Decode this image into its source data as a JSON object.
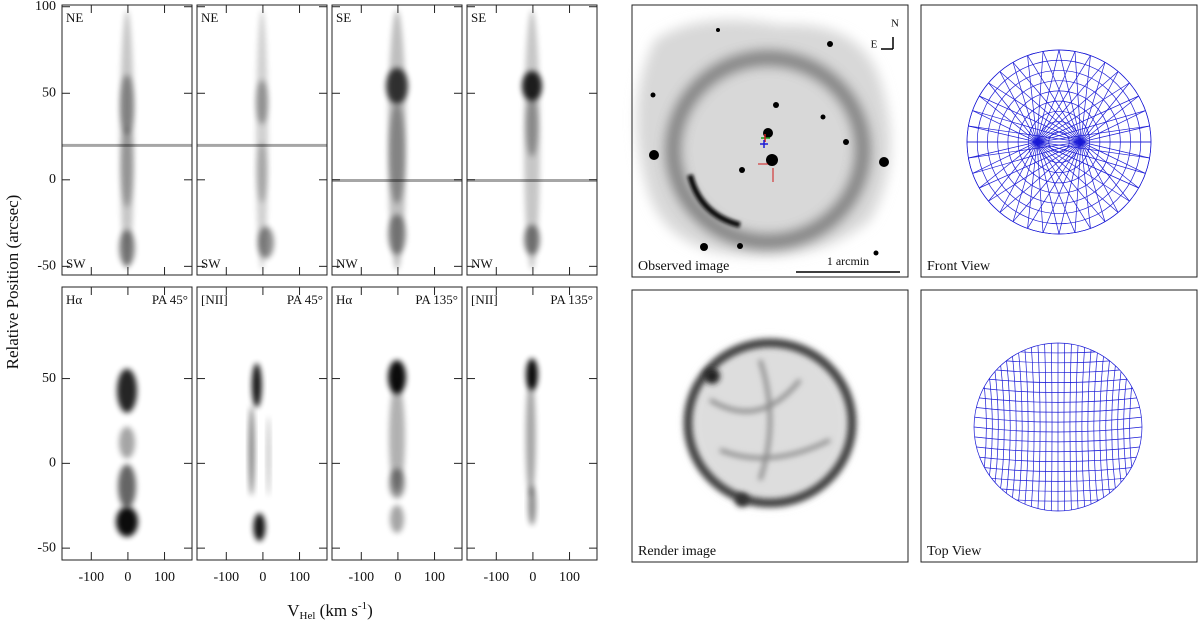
{
  "figure": {
    "ylabel": "Relative Position (arcsec)",
    "xlabel": {
      "base": "V",
      "sub": "Hel",
      "unit": " (km s",
      "sup": "-1",
      "end": ")"
    }
  },
  "chart_data": [
    {
      "type": "image",
      "top_left": "NE",
      "bottom_left": "SW",
      "xlim": [
        -180,
        175
      ],
      "ylim": [
        -55,
        101
      ],
      "xticks": [
        -100,
        0,
        100
      ],
      "yticks": [
        -50,
        0,
        50,
        100
      ]
    },
    {
      "type": "image",
      "top_left": "NE",
      "bottom_left": "SW",
      "xlim": [
        -180,
        175
      ],
      "ylim": [
        -55,
        101
      ],
      "xticks": [
        -100,
        0,
        100
      ],
      "yticks": [
        -50,
        0,
        50,
        100
      ]
    },
    {
      "type": "image",
      "top_left": "SE",
      "bottom_left": "NW",
      "xlim": [
        -180,
        175
      ],
      "ylim": [
        -55,
        101
      ],
      "xticks": [
        -100,
        0,
        100
      ],
      "yticks": [
        -50,
        0,
        50,
        100
      ]
    },
    {
      "type": "image",
      "top_left": "SE",
      "bottom_left": "NW",
      "xlim": [
        -180,
        175
      ],
      "ylim": [
        -55,
        101
      ],
      "xticks": [
        -100,
        0,
        100
      ],
      "yticks": [
        -50,
        0,
        50,
        100
      ]
    },
    {
      "type": "image",
      "top_left": "Hα",
      "top_right": "PA 45°",
      "xlim": [
        -180,
        175
      ],
      "ylim": [
        -57,
        104
      ],
      "xticks": [
        -100,
        0,
        100
      ],
      "yticks": [
        -50,
        0,
        50
      ]
    },
    {
      "type": "image",
      "top_left": "[NII]",
      "top_right": "PA 45°",
      "xlim": [
        -180,
        175
      ],
      "ylim": [
        -57,
        104
      ],
      "xticks": [
        -100,
        0,
        100
      ],
      "yticks": [
        -50,
        0,
        50
      ]
    },
    {
      "type": "image",
      "top_left": "Hα",
      "top_right": "PA 135°",
      "xlim": [
        -180,
        175
      ],
      "ylim": [
        -57,
        104
      ],
      "xticks": [
        -100,
        0,
        100
      ],
      "yticks": [
        -50,
        0,
        50
      ]
    },
    {
      "type": "image",
      "top_left": "[NII]",
      "top_right": "PA 135°",
      "xlim": [
        -180,
        175
      ],
      "ylim": [
        -57,
        104
      ],
      "xticks": [
        -100,
        0,
        100
      ],
      "yticks": [
        -50,
        0,
        50
      ]
    }
  ],
  "images": {
    "observed": {
      "label": "Observed image",
      "scale": "1 arcmin",
      "north": "N",
      "east": "E"
    },
    "front": {
      "label": "Front View"
    },
    "render": {
      "label": "Render image"
    },
    "top": {
      "label": "Top View"
    }
  }
}
